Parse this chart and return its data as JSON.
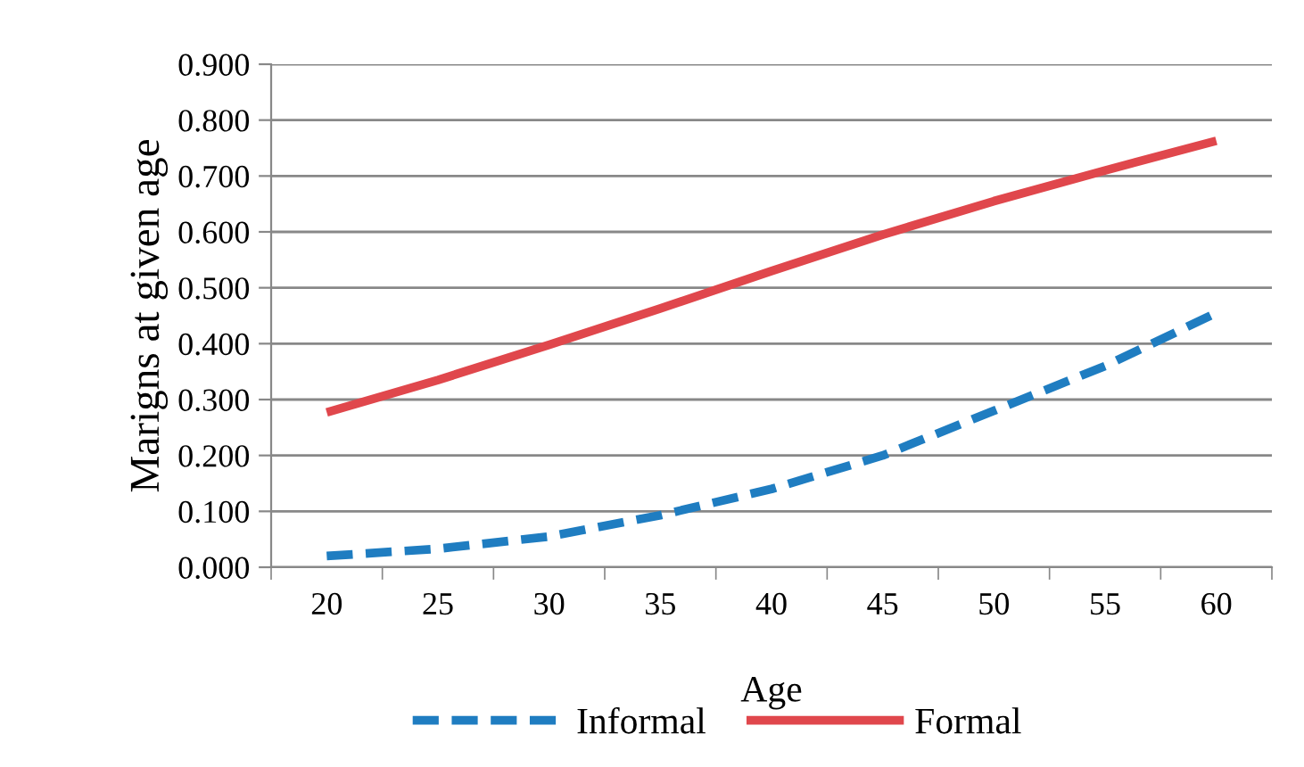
{
  "chart_data": {
    "type": "line",
    "xlabel": "Age",
    "ylabel": "Marigns at given age",
    "categories": [
      "20",
      "25",
      "30",
      "35",
      "40",
      "45",
      "50",
      "55",
      "60"
    ],
    "series": [
      {
        "name": "Informal",
        "color": "#1f7dc1",
        "line_style": "dashed",
        "values": [
          0.02,
          0.033,
          0.055,
          0.093,
          0.14,
          0.2,
          0.28,
          0.36,
          0.455
        ]
      },
      {
        "name": "Formal",
        "color": "#e0474c",
        "line_style": "solid",
        "values": [
          0.277,
          0.335,
          0.398,
          0.463,
          0.53,
          0.595,
          0.655,
          0.71,
          0.763
        ]
      }
    ],
    "ylim": [
      0,
      0.9
    ],
    "yticks": [
      {
        "value": 0,
        "label": "0.000"
      },
      {
        "value": 0.1,
        "label": "0.100"
      },
      {
        "value": 0.2,
        "label": "0.200"
      },
      {
        "value": 0.3,
        "label": "0.300"
      },
      {
        "value": 0.4,
        "label": "0.400"
      },
      {
        "value": 0.5,
        "label": "0.500"
      },
      {
        "value": 0.6,
        "label": "0.600"
      },
      {
        "value": 0.7,
        "label": "0.700"
      },
      {
        "value": 0.8,
        "label": "0.800"
      },
      {
        "value": 0.9,
        "label": "0.900"
      }
    ],
    "grid": "y",
    "legend": "bottom",
    "marker": "none"
  }
}
